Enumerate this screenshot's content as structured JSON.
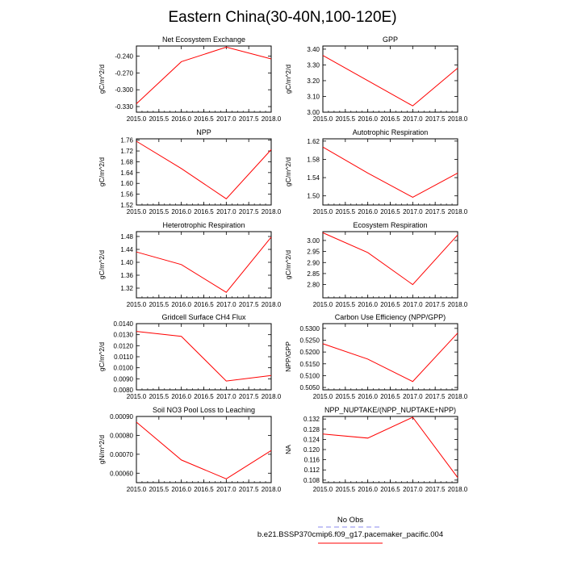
{
  "title": "Eastern China(30-40N,100-120E)",
  "colors": {
    "line": "#ff0000",
    "obs": "#8888ee",
    "frame": "#000000"
  },
  "legend": {
    "obs_label": "No Obs",
    "model_label": "b.e21.BSSP370cmip6.f09_g17.pacemaker_pacific.004"
  },
  "x_ticks": [
    "2015.0",
    "2015.5",
    "2016.0",
    "2016.5",
    "2017.0",
    "2017.5",
    "2018.0"
  ],
  "chart_data": [
    {
      "type": "line",
      "title": "Net Ecosystem Exchange",
      "ylabel": "gC/m^2/d",
      "x": [
        2015,
        2016,
        2017,
        2018
      ],
      "values": [
        -0.325,
        -0.25,
        -0.224,
        -0.245
      ],
      "ylim": [
        -0.34,
        -0.222
      ],
      "xlim": [
        2015,
        2018
      ],
      "yticks": [
        -0.33,
        -0.3,
        -0.27,
        -0.24
      ],
      "ytick_labels": [
        "-0.330",
        "-0.300",
        "-0.270",
        "-0.240"
      ]
    },
    {
      "type": "line",
      "title": "GPP",
      "ylabel": "gC/m^2/d",
      "x": [
        2015,
        2016,
        2017,
        2018
      ],
      "values": [
        3.36,
        3.2,
        3.04,
        3.28
      ],
      "ylim": [
        3.0,
        3.42
      ],
      "xlim": [
        2015,
        2018
      ],
      "yticks": [
        3.0,
        3.1,
        3.2,
        3.3,
        3.4
      ],
      "ytick_labels": [
        "3.00",
        "3.10",
        "3.20",
        "3.30",
        "3.40"
      ]
    },
    {
      "type": "line",
      "title": "NPP",
      "ylabel": "gC/m^2/d",
      "x": [
        2015,
        2016,
        2017,
        2018
      ],
      "values": [
        1.756,
        1.655,
        1.543,
        1.725
      ],
      "ylim": [
        1.52,
        1.765
      ],
      "xlim": [
        2015,
        2018
      ],
      "yticks": [
        1.52,
        1.56,
        1.6,
        1.64,
        1.68,
        1.72,
        1.76
      ],
      "ytick_labels": [
        "1.52",
        "1.56",
        "1.60",
        "1.64",
        "1.68",
        "1.72",
        "1.76"
      ]
    },
    {
      "type": "line",
      "title": "Autotrophic Respiration",
      "ylabel": "gC/m^2/d",
      "x": [
        2015,
        2016,
        2017,
        2018
      ],
      "values": [
        1.607,
        1.55,
        1.497,
        1.55
      ],
      "ylim": [
        1.48,
        1.625
      ],
      "xlim": [
        2015,
        2018
      ],
      "yticks": [
        1.5,
        1.54,
        1.58,
        1.62
      ],
      "ytick_labels": [
        "1.50",
        "1.54",
        "1.58",
        "1.62"
      ]
    },
    {
      "type": "line",
      "title": "Heterotrophic Respiration",
      "ylabel": "gC/m^2/d",
      "x": [
        2015,
        2016,
        2017,
        2018
      ],
      "values": [
        1.432,
        1.393,
        1.307,
        1.478
      ],
      "ylim": [
        1.29,
        1.495
      ],
      "xlim": [
        2015,
        2018
      ],
      "yticks": [
        1.32,
        1.36,
        1.4,
        1.44,
        1.48
      ],
      "ytick_labels": [
        "1.32",
        "1.36",
        "1.40",
        "1.44",
        "1.48"
      ]
    },
    {
      "type": "line",
      "title": "Ecosystem Respiration",
      "ylabel": "gC/m^2/d",
      "x": [
        2015,
        2016,
        2017,
        2018
      ],
      "values": [
        3.035,
        2.945,
        2.8,
        3.025
      ],
      "ylim": [
        2.74,
        3.04
      ],
      "xlim": [
        2015,
        2018
      ],
      "yticks": [
        2.8,
        2.85,
        2.9,
        2.95,
        3.0
      ],
      "ytick_labels": [
        "2.80",
        "2.85",
        "2.90",
        "2.95",
        "3.00"
      ]
    },
    {
      "type": "line",
      "title": "Gridcell Surface CH4 Flux",
      "ylabel": "gC/m^2/d",
      "x": [
        2015,
        2016,
        2017,
        2018
      ],
      "values": [
        0.0133,
        0.01285,
        0.0088,
        0.0093
      ],
      "ylim": [
        0.008,
        0.014
      ],
      "xlim": [
        2015,
        2018
      ],
      "yticks": [
        0.008,
        0.009,
        0.01,
        0.011,
        0.012,
        0.013,
        0.014
      ],
      "ytick_labels": [
        "0.0080",
        "0.0090",
        "0.0100",
        "0.0110",
        "0.0120",
        "0.0130",
        "0.0140"
      ]
    },
    {
      "type": "line",
      "title": "Carbon Use Efficiency (NPP/GPP)",
      "ylabel": "NPP/GPP",
      "x": [
        2015,
        2016,
        2017,
        2018
      ],
      "values": [
        0.5235,
        0.517,
        0.5075,
        0.528
      ],
      "ylim": [
        0.504,
        0.532
      ],
      "xlim": [
        2015,
        2018
      ],
      "yticks": [
        0.505,
        0.51,
        0.515,
        0.52,
        0.525,
        0.53
      ],
      "ytick_labels": [
        "0.5050",
        "0.5100",
        "0.5150",
        "0.5200",
        "0.5250",
        "0.5300"
      ]
    },
    {
      "type": "line",
      "title": "Soil NO3 Pool Loss to Leaching",
      "ylabel": "gN/m^2/d",
      "x": [
        2015,
        2016,
        2017,
        2018
      ],
      "values": [
        0.00087,
        0.00067,
        0.00057,
        0.00072
      ],
      "ylim": [
        0.00055,
        0.0009
      ],
      "xlim": [
        2015,
        2018
      ],
      "yticks": [
        0.0006,
        0.0007,
        0.0008,
        0.0009
      ],
      "ytick_labels": [
        "0.00060",
        "0.00070",
        "0.00080",
        "0.00090"
      ]
    },
    {
      "type": "line",
      "title": "NPP_NUPTAKE/(NPP_NUPTAKE+NPP)",
      "ylabel": "NA",
      "x": [
        2015,
        2016,
        2017,
        2018
      ],
      "values": [
        0.1261,
        0.1245,
        0.1327,
        0.109
      ],
      "ylim": [
        0.107,
        0.133
      ],
      "xlim": [
        2015,
        2018
      ],
      "yticks": [
        0.108,
        0.112,
        0.116,
        0.12,
        0.124,
        0.128,
        0.132
      ],
      "ytick_labels": [
        "0.108",
        "0.112",
        "0.116",
        "0.120",
        "0.124",
        "0.128",
        "0.132"
      ]
    }
  ]
}
